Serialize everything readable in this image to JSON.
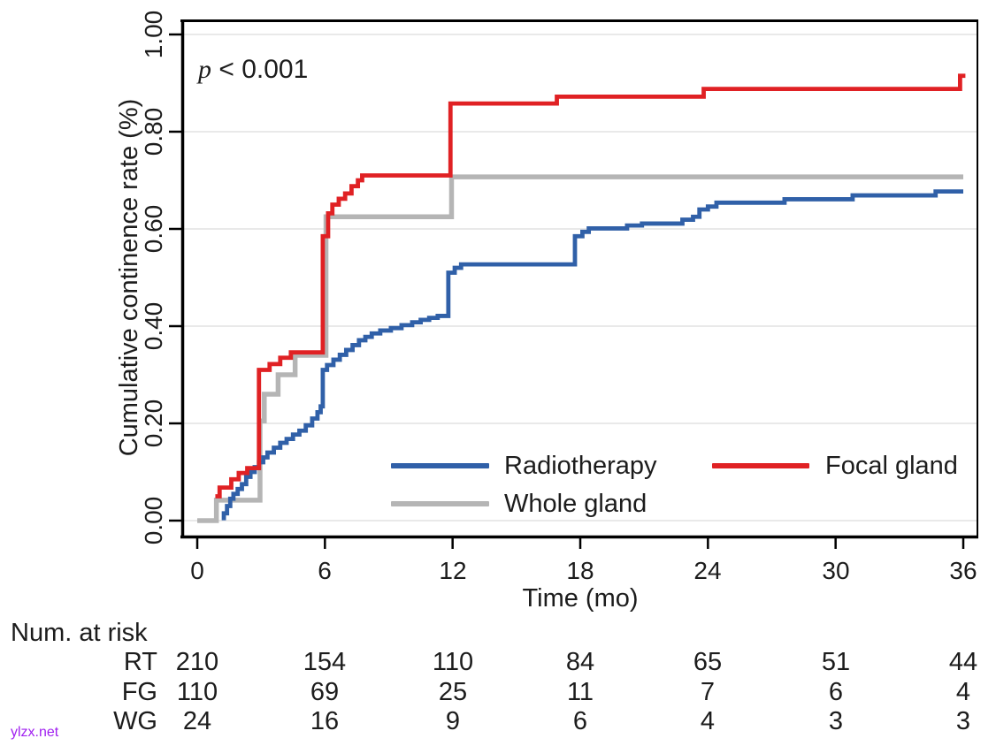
{
  "chart_data": {
    "type": "line",
    "subtype": "kaplan-meier-step",
    "title": "",
    "xlabel": "Time (mo)",
    "ylabel": "Cumulative continence rate (%)",
    "annotation": {
      "p": "p",
      "rest": " < 0.001"
    },
    "xlim": [
      0,
      36
    ],
    "ylim": [
      0.0,
      1.0
    ],
    "grid": "horizontal",
    "grid_color": "#e9e9e9",
    "axis_color": "#000000",
    "x_ticks": [
      0,
      6,
      12,
      18,
      24,
      30,
      36
    ],
    "x_tick_labels": [
      "0",
      "6",
      "12",
      "18",
      "24",
      "30",
      "36"
    ],
    "y_ticks": [
      0,
      0.2,
      0.4,
      0.6,
      0.8,
      1.0
    ],
    "y_tick_labels": [
      "0.00",
      "0.20",
      "0.40",
      "0.60",
      "0.80",
      "1.00"
    ],
    "legend_position": "inside-bottom-right",
    "legend": [
      {
        "label": "Radiotherapy",
        "color": "#3060a8"
      },
      {
        "label": "Focal gland",
        "color": "#e02124"
      },
      {
        "label": "Whole gland",
        "color": "#b5b5b5"
      }
    ],
    "series": [
      {
        "name": "Whole gland",
        "abbr": "WG",
        "color": "#b5b5b5",
        "width": 5.5,
        "end": 36,
        "points": [
          [
            0,
            0
          ],
          [
            0.9,
            0.042
          ],
          [
            2.95,
            0.205
          ],
          [
            3.15,
            0.26
          ],
          [
            3.8,
            0.3
          ],
          [
            4.6,
            0.34
          ],
          [
            6.05,
            0.625
          ],
          [
            11.95,
            0.707
          ]
        ]
      },
      {
        "name": "Radiotherapy",
        "abbr": "RT",
        "color": "#3060a8",
        "width": 4.8,
        "end": 36,
        "points": [
          [
            1.15,
            0.005
          ],
          [
            1.25,
            0.015
          ],
          [
            1.4,
            0.03
          ],
          [
            1.55,
            0.045
          ],
          [
            1.7,
            0.055
          ],
          [
            1.9,
            0.065
          ],
          [
            2.1,
            0.075
          ],
          [
            2.3,
            0.09
          ],
          [
            2.5,
            0.1
          ],
          [
            2.7,
            0.11
          ],
          [
            2.9,
            0.12
          ],
          [
            3.1,
            0.13
          ],
          [
            3.3,
            0.14
          ],
          [
            3.6,
            0.15
          ],
          [
            3.9,
            0.16
          ],
          [
            4.2,
            0.168
          ],
          [
            4.5,
            0.177
          ],
          [
            4.8,
            0.185
          ],
          [
            5.1,
            0.196
          ],
          [
            5.4,
            0.21
          ],
          [
            5.65,
            0.223
          ],
          [
            5.8,
            0.235
          ],
          [
            5.9,
            0.31
          ],
          [
            6.1,
            0.32
          ],
          [
            6.4,
            0.331
          ],
          [
            6.7,
            0.341
          ],
          [
            7.0,
            0.351
          ],
          [
            7.3,
            0.361
          ],
          [
            7.6,
            0.371
          ],
          [
            7.9,
            0.378
          ],
          [
            8.2,
            0.385
          ],
          [
            8.6,
            0.391
          ],
          [
            9.1,
            0.396
          ],
          [
            9.6,
            0.402
          ],
          [
            10.1,
            0.408
          ],
          [
            10.5,
            0.413
          ],
          [
            10.9,
            0.417
          ],
          [
            11.3,
            0.421
          ],
          [
            11.8,
            0.51
          ],
          [
            12.1,
            0.52
          ],
          [
            12.4,
            0.527
          ],
          [
            17.75,
            0.585
          ],
          [
            18.1,
            0.594
          ],
          [
            18.4,
            0.601
          ],
          [
            20.2,
            0.607
          ],
          [
            20.9,
            0.611
          ],
          [
            22.8,
            0.619
          ],
          [
            23.3,
            0.625
          ],
          [
            23.6,
            0.64
          ],
          [
            24.0,
            0.646
          ],
          [
            24.4,
            0.654
          ],
          [
            27.6,
            0.661
          ],
          [
            30.8,
            0.669
          ],
          [
            34.7,
            0.677
          ]
        ]
      },
      {
        "name": "Focal gland",
        "abbr": "FG",
        "color": "#e02124",
        "width": 4.8,
        "end": 36.1,
        "points": [
          [
            0.85,
            0.05
          ],
          [
            1.05,
            0.068
          ],
          [
            1.6,
            0.085
          ],
          [
            1.95,
            0.098
          ],
          [
            2.35,
            0.108
          ],
          [
            2.9,
            0.31
          ],
          [
            3.4,
            0.322
          ],
          [
            3.9,
            0.335
          ],
          [
            4.4,
            0.346
          ],
          [
            5.9,
            0.585
          ],
          [
            6.15,
            0.632
          ],
          [
            6.35,
            0.65
          ],
          [
            6.65,
            0.662
          ],
          [
            6.95,
            0.673
          ],
          [
            7.25,
            0.688
          ],
          [
            7.55,
            0.7
          ],
          [
            7.75,
            0.71
          ],
          [
            11.9,
            0.858
          ],
          [
            16.9,
            0.872
          ],
          [
            23.8,
            0.888
          ],
          [
            35.85,
            0.915
          ]
        ]
      }
    ]
  },
  "risk_table": {
    "heading": "Num. at risk",
    "time_points": [
      0,
      6,
      12,
      18,
      24,
      30,
      36
    ],
    "rows": [
      {
        "label": "RT",
        "values": [
          "210",
          "154",
          "110",
          "84",
          "65",
          "51",
          "44"
        ]
      },
      {
        "label": "FG",
        "values": [
          "110",
          "69",
          "25",
          "11",
          "7",
          "6",
          "4"
        ]
      },
      {
        "label": "WG",
        "values": [
          "24",
          "16",
          "9",
          "6",
          "4",
          "3",
          "3"
        ]
      }
    ]
  },
  "watermark": {
    "text": "ylzx.net",
    "color": "#a020f0"
  }
}
